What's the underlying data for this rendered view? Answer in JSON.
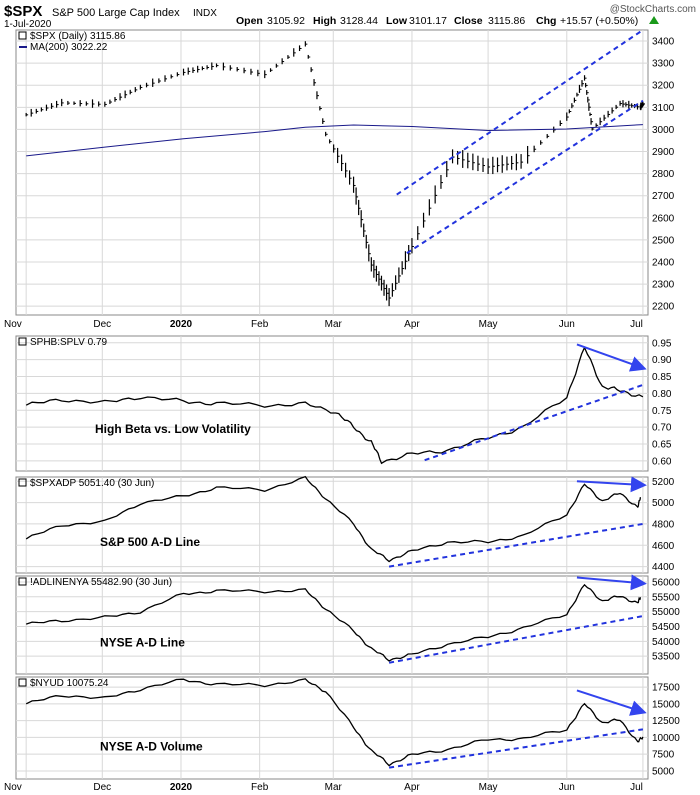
{
  "header": {
    "symbol": "$SPX",
    "description": "S&P 500 Large Cap Index",
    "exchange": "INDX",
    "date": "1-Jul-2020",
    "open_label": "Open",
    "open": "3105.92",
    "high_label": "High",
    "high": "3128.44",
    "low_label": "Low",
    "low": "3101.17",
    "close_label": "Close",
    "close": "3115.86",
    "chg_label": "Chg",
    "chg": "+15.57 (+0.50%)",
    "watermark": "@StockCharts.com",
    "up_arrow_color": "#1a9a1a"
  },
  "colors": {
    "price_bars": "#000000",
    "ma_line": "#1a1a8a",
    "trend_lines": "#2233dd",
    "arrows": "#3344ee",
    "grid": "#d8d8d8"
  },
  "x_axis": {
    "months_top": [
      "Nov",
      "Dec",
      "2020",
      "Feb",
      "Mar",
      "Apr",
      "May",
      "Jun",
      "Jul"
    ],
    "months_bottom": [
      "Nov",
      "Dec",
      "2020",
      "Feb",
      "Mar",
      "Apr",
      "May",
      "Jun",
      "Jul"
    ]
  },
  "chart_data": [
    {
      "type": "line",
      "legend": [
        "$SPX (Daily) 3115.86",
        "MA(200) 3022.22"
      ],
      "ylim": [
        2160,
        3450
      ],
      "yticks": [
        2200,
        2300,
        2400,
        2500,
        2600,
        2700,
        2800,
        2900,
        3000,
        3100,
        3200,
        3300,
        3400
      ],
      "series": [
        {
          "name": "$SPX (Daily)",
          "style": "ohlc-bars",
          "x": [
            "2019-11-01",
            "2019-11-15",
            "2019-12-02",
            "2019-12-16",
            "2020-01-02",
            "2020-01-15",
            "2020-02-03",
            "2020-02-19",
            "2020-02-27",
            "2020-03-09",
            "2020-03-16",
            "2020-03-23",
            "2020-04-01",
            "2020-04-17",
            "2020-05-01",
            "2020-05-14",
            "2020-06-01",
            "2020-06-08",
            "2020-06-11",
            "2020-06-22",
            "2020-06-30",
            "2020-07-01"
          ],
          "values": [
            3066,
            3120,
            3113,
            3190,
            3258,
            3289,
            3248,
            3386,
            2978,
            2746,
            2386,
            2237,
            2470,
            2875,
            2830,
            2852,
            3056,
            3232,
            3002,
            3117,
            3100,
            3116
          ]
        },
        {
          "name": "MA(200)",
          "x": [
            "2019-11-01",
            "2019-12-02",
            "2020-01-02",
            "2020-02-03",
            "2020-02-19",
            "2020-03-09",
            "2020-04-01",
            "2020-05-01",
            "2020-06-01",
            "2020-07-01"
          ],
          "values": [
            2880,
            2920,
            2958,
            2990,
            3010,
            3020,
            3013,
            2995,
            3002,
            3022
          ]
        }
      ],
      "trendlines": [
        {
          "x": [
            "2020-03-26",
            "2020-07-01"
          ],
          "values": [
            2705,
            3450
          ]
        },
        {
          "x": [
            "2020-03-30",
            "2020-07-01"
          ],
          "values": [
            2440,
            3130
          ]
        }
      ]
    },
    {
      "type": "line",
      "legend": [
        "SPHB:SPLV 0.79"
      ],
      "label": "High Beta vs. Low Volatility",
      "ylim": [
        0.57,
        0.97
      ],
      "yticks": [
        0.6,
        0.65,
        0.7,
        0.75,
        0.8,
        0.85,
        0.9,
        0.95
      ],
      "series": [
        {
          "name": "SPHB:SPLV",
          "x": [
            "2019-11-01",
            "2019-11-15",
            "2019-12-02",
            "2019-12-16",
            "2020-01-02",
            "2020-01-15",
            "2020-02-03",
            "2020-02-19",
            "2020-03-02",
            "2020-03-09",
            "2020-03-16",
            "2020-03-20",
            "2020-04-01",
            "2020-04-15",
            "2020-05-01",
            "2020-05-15",
            "2020-06-01",
            "2020-06-08",
            "2020-06-15",
            "2020-06-22",
            "2020-07-01"
          ],
          "values": [
            0.765,
            0.782,
            0.772,
            0.79,
            0.776,
            0.77,
            0.765,
            0.768,
            0.745,
            0.7,
            0.655,
            0.598,
            0.62,
            0.632,
            0.668,
            0.7,
            0.79,
            0.935,
            0.82,
            0.808,
            0.79
          ]
        }
      ],
      "trendlines": [
        {
          "x": [
            "2020-04-06",
            "2020-07-01"
          ],
          "values": [
            0.602,
            0.825
          ]
        }
      ],
      "arrows": [
        {
          "from": [
            "2020-06-05",
            0.945
          ],
          "to": [
            "2020-07-01",
            0.875
          ]
        }
      ]
    },
    {
      "type": "line",
      "legend": [
        "$SPXADP 5051.40 (30 Jun)"
      ],
      "label": "S&P 500 A-D Line",
      "ylim": [
        4340,
        5240
      ],
      "yticks": [
        4400,
        4600,
        4800,
        5000,
        5200
      ],
      "series": [
        {
          "name": "$SPXADP",
          "x": [
            "2019-11-01",
            "2019-11-15",
            "2019-12-02",
            "2019-12-16",
            "2020-01-02",
            "2020-01-15",
            "2020-02-03",
            "2020-02-19",
            "2020-02-27",
            "2020-03-09",
            "2020-03-16",
            "2020-03-23",
            "2020-04-01",
            "2020-04-15",
            "2020-05-01",
            "2020-05-15",
            "2020-06-01",
            "2020-06-08",
            "2020-06-15",
            "2020-06-22",
            "2020-06-29",
            "2020-06-30"
          ],
          "values": [
            4660,
            4790,
            4820,
            4995,
            5060,
            5140,
            5120,
            5230,
            5040,
            4800,
            4560,
            4460,
            4545,
            4630,
            4630,
            4690,
            4890,
            5170,
            5015,
            5090,
            4955,
            5051
          ]
        }
      ],
      "trendlines": [
        {
          "x": [
            "2020-03-23",
            "2020-07-01"
          ],
          "values": [
            4400,
            4800
          ]
        }
      ],
      "arrows": [
        {
          "from": [
            "2020-06-05",
            5200
          ],
          "to": [
            "2020-07-01",
            5165
          ]
        }
      ]
    },
    {
      "type": "line",
      "legend": [
        "!ADLINENYA 55482.90 (30 Jun)"
      ],
      "label": "NYSE A-D Line",
      "ylim": [
        52900,
        56200
      ],
      "yticks": [
        53500,
        54000,
        54500,
        55000,
        55500,
        56000
      ],
      "series": [
        {
          "name": "!ADLINENYA",
          "x": [
            "2019-11-01",
            "2019-11-15",
            "2019-12-02",
            "2019-12-16",
            "2020-01-02",
            "2020-01-15",
            "2020-02-03",
            "2020-02-19",
            "2020-02-27",
            "2020-03-09",
            "2020-03-16",
            "2020-03-23",
            "2020-04-01",
            "2020-04-15",
            "2020-05-01",
            "2020-05-15",
            "2020-06-01",
            "2020-06-08",
            "2020-06-15",
            "2020-06-22",
            "2020-06-29",
            "2020-06-30"
          ],
          "values": [
            54580,
            54700,
            54800,
            55000,
            55600,
            55700,
            55680,
            55720,
            55100,
            54350,
            53750,
            53380,
            53550,
            53900,
            54150,
            54450,
            54920,
            55900,
            55360,
            55520,
            55290,
            55483
          ]
        }
      ],
      "trendlines": [
        {
          "x": [
            "2020-03-23",
            "2020-07-01"
          ],
          "values": [
            53280,
            54850
          ]
        }
      ],
      "arrows": [
        {
          "from": [
            "2020-06-05",
            56150
          ],
          "to": [
            "2020-07-01",
            55950
          ]
        }
      ]
    },
    {
      "type": "line",
      "legend": [
        "$NYUD 10075.24"
      ],
      "label": "NYSE A-D Volume",
      "ylim": [
        3800,
        19000
      ],
      "yticks": [
        5000,
        7500,
        10000,
        12500,
        15000,
        17500
      ],
      "series": [
        {
          "name": "$NYUD",
          "x": [
            "2019-11-01",
            "2019-11-15",
            "2019-12-02",
            "2019-12-16",
            "2020-01-02",
            "2020-01-15",
            "2020-02-03",
            "2020-02-19",
            "2020-02-27",
            "2020-03-09",
            "2020-03-16",
            "2020-03-23",
            "2020-04-01",
            "2020-04-15",
            "2020-05-01",
            "2020-05-15",
            "2020-06-01",
            "2020-06-08",
            "2020-06-15",
            "2020-06-22",
            "2020-06-29",
            "2020-07-01"
          ],
          "values": [
            15000,
            16300,
            15800,
            17200,
            18600,
            17900,
            17800,
            18500,
            16900,
            11500,
            8000,
            6000,
            7400,
            8200,
            9700,
            9800,
            11200,
            15000,
            12200,
            12600,
            9300,
            10075
          ]
        }
      ],
      "trendlines": [
        {
          "x": [
            "2020-03-23",
            "2020-07-01"
          ],
          "values": [
            5500,
            11200
          ]
        }
      ],
      "arrows": [
        {
          "from": [
            "2020-06-05",
            17000
          ],
          "to": [
            "2020-07-01",
            13800
          ]
        }
      ]
    }
  ]
}
